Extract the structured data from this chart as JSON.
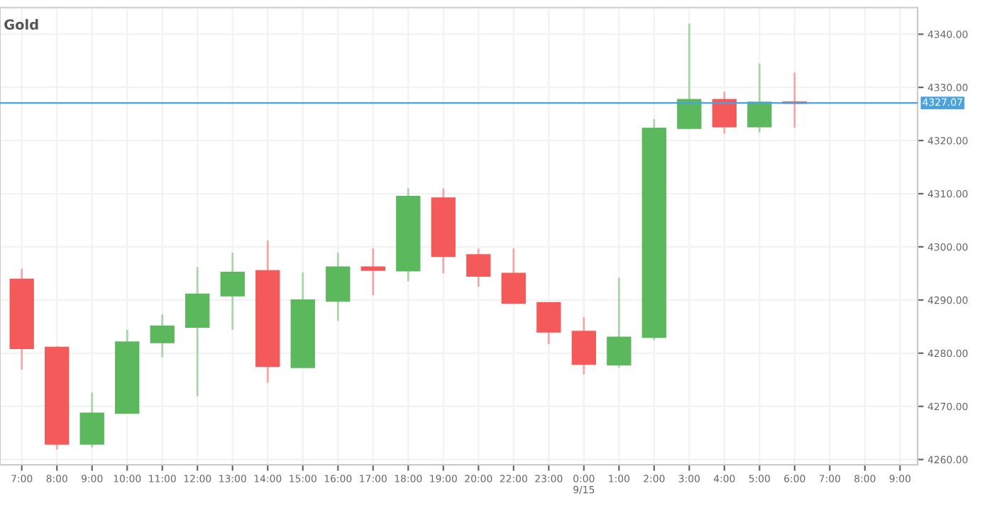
{
  "chart_data": {
    "type": "candlestick",
    "title": "Gold",
    "categories": [
      "7:00",
      "8:00",
      "9:00",
      "10:00",
      "11:00",
      "12:00",
      "13:00",
      "14:00",
      "15:00",
      "16:00",
      "17:00",
      "18:00",
      "19:00",
      "20:00",
      "22:00",
      "23:00",
      "0:00\n9/15",
      "1:00",
      "2:00",
      "3:00",
      "4:00",
      "5:00",
      "6:00",
      "7:00",
      "8:00",
      "9:00"
    ],
    "ohlc": [
      [
        4293.9,
        4295.9,
        4276.9,
        4280.9
      ],
      [
        4281.1,
        4281.3,
        4261.9,
        4262.9
      ],
      [
        4262.9,
        4272.6,
        4262.3,
        4268.7
      ],
      [
        4268.7,
        4284.4,
        4268.7,
        4282.1
      ],
      [
        4282.0,
        4287.3,
        4279.2,
        4285.1
      ],
      [
        4284.9,
        4296.2,
        4271.9,
        4291.1
      ],
      [
        4290.8,
        4298.9,
        4284.4,
        4295.2
      ],
      [
        4295.5,
        4301.2,
        4274.4,
        4277.5
      ],
      [
        4277.3,
        4295.2,
        4277.3,
        4290.0
      ],
      [
        4289.8,
        4298.9,
        4286.1,
        4296.2
      ],
      [
        4296.2,
        4299.7,
        4290.9,
        4295.6
      ],
      [
        4295.5,
        4311.0,
        4293.5,
        4309.5
      ],
      [
        4309.2,
        4311.0,
        4295.0,
        4298.2
      ],
      [
        4298.5,
        4299.7,
        4292.5,
        4294.5
      ],
      [
        4295.0,
        4299.7,
        4289.4,
        4289.4
      ],
      [
        4289.5,
        4289.5,
        4281.7,
        4284.0
      ],
      [
        4284.1,
        4286.8,
        4276.0,
        4277.9
      ],
      [
        4277.8,
        4294.2,
        4277.3,
        4283.0
      ],
      [
        4283.0,
        4324.0,
        4282.4,
        4322.3
      ],
      [
        4322.3,
        4342.0,
        4322.3,
        4327.7
      ],
      [
        4327.7,
        4329.2,
        4321.3,
        4322.6
      ],
      [
        4322.6,
        4334.5,
        4321.5,
        4327.2
      ],
      [
        4327.1,
        4332.8,
        4322.4,
        4327.0
      ],
      null,
      null,
      null
    ],
    "colors": [
      "#f55a5a",
      "#f55a5a",
      "#5cb85c",
      "#5cb85c",
      "#5cb85c",
      "#5cb85c",
      "#5cb85c",
      "#f55a5a",
      "#5cb85c",
      "#5cb85c",
      "#f55a5a",
      "#5cb85c",
      "#f55a5a",
      "#f55a5a",
      "#f55a5a",
      "#f55a5a",
      "#f55a5a",
      "#5cb85c",
      "#5cb85c",
      "#5cb85c",
      "#f55a5a",
      "#5cb85c",
      "#f55a5a",
      null,
      null,
      null
    ],
    "ylim": [
      4259,
      4345
    ],
    "yticks": [
      {
        "value": 4260,
        "label": "4260.00"
      },
      {
        "value": 4270,
        "label": "4270.00"
      },
      {
        "value": 4280,
        "label": "4280.00"
      },
      {
        "value": 4290,
        "label": "4290.00"
      },
      {
        "value": 4300,
        "label": "4300.00"
      },
      {
        "value": 4310,
        "label": "4310.00"
      },
      {
        "value": 4320,
        "label": "4320.00"
      },
      {
        "value": 4330,
        "label": "4330.00"
      },
      {
        "value": 4340,
        "label": "4340.00"
      }
    ],
    "ref_lines": [
      {
        "axis": "y",
        "value": 4327.07,
        "label": "4327.07",
        "color": "#4aa3df"
      }
    ],
    "grid": true
  }
}
